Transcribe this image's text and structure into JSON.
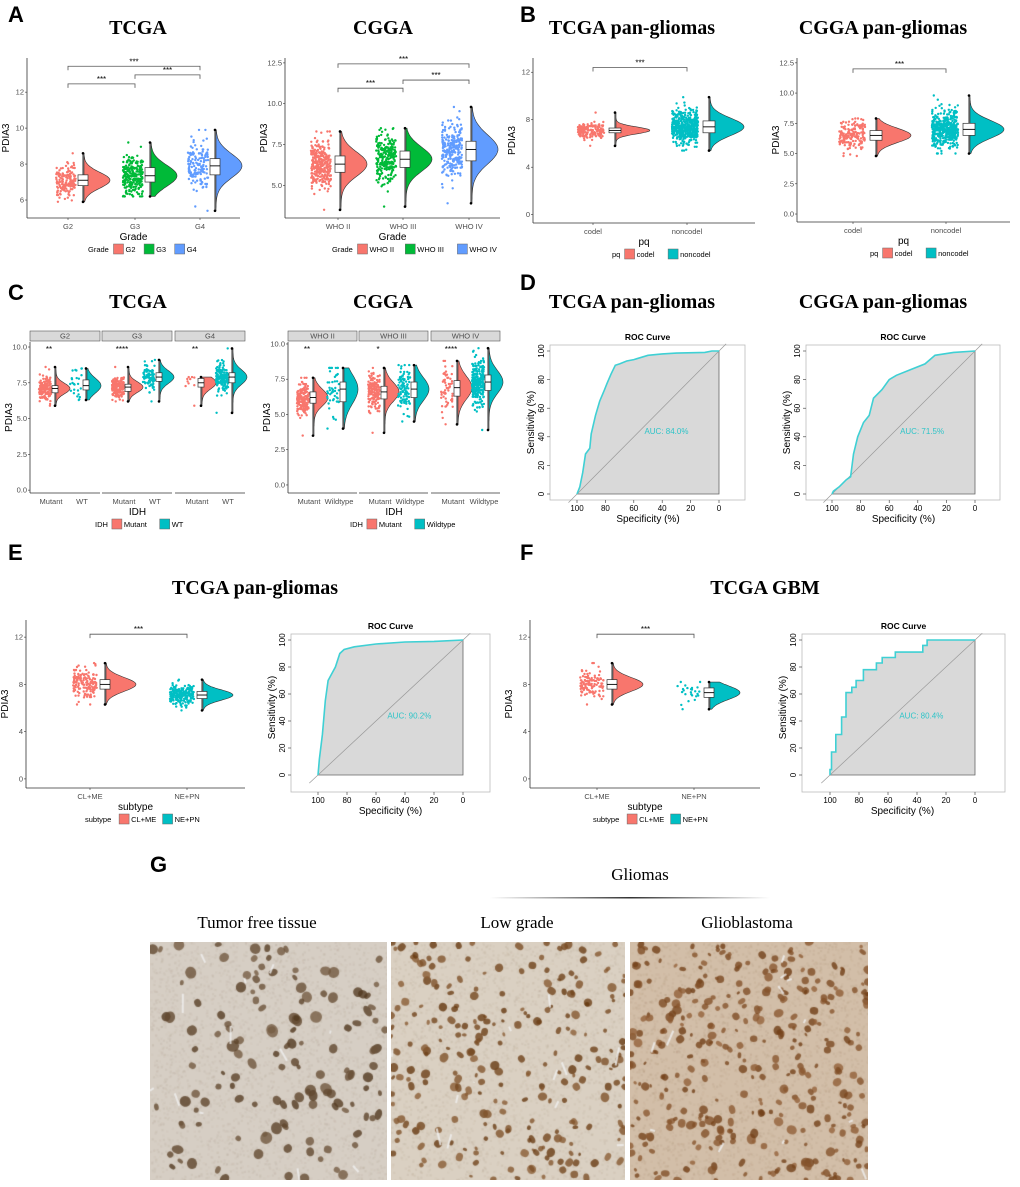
{
  "panels": {
    "A": {
      "letter": "A",
      "titles": [
        "TCGA",
        "CGGA"
      ]
    },
    "B": {
      "letter": "B",
      "titles": [
        "TCGA  pan-gliomas",
        "CGGA  pan-gliomas"
      ]
    },
    "C": {
      "letter": "C",
      "titles": [
        "TCGA",
        "CGGA"
      ]
    },
    "D": {
      "letter": "D",
      "titles": [
        "TCGA  pan-gliomas",
        "CGGA  pan-gliomas"
      ]
    },
    "E": {
      "letter": "E",
      "titles": [
        "TCGA  pan-gliomas"
      ]
    },
    "F": {
      "letter": "F",
      "titles": [
        "TCGA  GBM"
      ]
    },
    "G": {
      "letter": "G",
      "group_label": "Gliomas",
      "columns": [
        "Tumor free tissue",
        "Low grade",
        "Glioblastoma"
      ]
    }
  },
  "colors": {
    "red": "#F8766D",
    "green": "#00BA38",
    "blue": "#619CFF",
    "cyan": "#00BFC4",
    "roc": "#3FD0D4",
    "auc": "#2EC4C8"
  },
  "chart_data": [
    {
      "id": "A1",
      "type": "raincloud",
      "ylabel": "PDIA3",
      "xlabel": "Grade",
      "ylim": [
        5,
        13.9
      ],
      "yticks": [
        "6",
        "8",
        "10",
        "12"
      ],
      "legend_title": "Grade",
      "groups": [
        {
          "name": "G2",
          "color": "#F8766D",
          "median": 7.1,
          "q1": 6.8,
          "q3": 7.4,
          "min": 5.9,
          "max": 8.6,
          "n": 150
        },
        {
          "name": "G3",
          "color": "#00BA38",
          "median": 7.35,
          "q1": 7.0,
          "q3": 7.8,
          "min": 6.2,
          "max": 9.2,
          "n": 250
        },
        {
          "name": "G4",
          "color": "#619CFF",
          "median": 7.9,
          "q1": 7.4,
          "q3": 8.3,
          "min": 5.4,
          "max": 9.9,
          "n": 150
        }
      ],
      "brackets": [
        {
          "from": 0,
          "to": 1,
          "y": 12.46,
          "label": "***"
        },
        {
          "from": 1,
          "to": 2,
          "y": 12.96,
          "label": "***"
        },
        {
          "from": 0,
          "to": 2,
          "y": 13.44,
          "label": "***"
        }
      ]
    },
    {
      "id": "A2",
      "type": "raincloud",
      "ylabel": "PDIA3",
      "xlabel": "Grade",
      "ylim": [
        3,
        12.8
      ],
      "yticks": [
        "5.0",
        "7.5",
        "10.0",
        "12.5"
      ],
      "legend_title": "Grade",
      "groups": [
        {
          "name": "WHO II",
          "color": "#F8766D",
          "median": 6.3,
          "q1": 5.8,
          "q3": 6.8,
          "min": 3.5,
          "max": 8.3,
          "n": 300
        },
        {
          "name": "WHO III",
          "color": "#00BA38",
          "median": 6.6,
          "q1": 6.1,
          "q3": 7.1,
          "min": 3.7,
          "max": 8.5,
          "n": 250
        },
        {
          "name": "WHO IV",
          "color": "#619CFF",
          "median": 7.2,
          "q1": 6.5,
          "q3": 7.7,
          "min": 3.9,
          "max": 9.8,
          "n": 250
        }
      ],
      "brackets": [
        {
          "from": 0,
          "to": 1,
          "y": 10.95,
          "label": "***"
        },
        {
          "from": 1,
          "to": 2,
          "y": 11.45,
          "label": "***"
        },
        {
          "from": 0,
          "to": 2,
          "y": 12.44,
          "label": "***"
        }
      ]
    },
    {
      "id": "B1",
      "type": "raincloud",
      "ylabel": "PDIA3",
      "xlabel": "pq",
      "ylim": [
        -0.7,
        13.2
      ],
      "yticks": [
        "0",
        "4",
        "8",
        "12"
      ],
      "legend_title": "pq",
      "groups": [
        {
          "name": "codel",
          "color": "#F8766D",
          "median": 7.1,
          "q1": 6.9,
          "q3": 7.3,
          "min": 5.8,
          "max": 8.6,
          "n": 170
        },
        {
          "name": "noncodel",
          "color": "#00BFC4",
          "median": 7.4,
          "q1": 6.9,
          "q3": 7.9,
          "min": 5.4,
          "max": 9.9,
          "n": 450
        }
      ],
      "brackets": [
        {
          "from": 0,
          "to": 1,
          "y": 12.4,
          "label": "***"
        }
      ]
    },
    {
      "id": "B2",
      "type": "raincloud",
      "ylabel": "PDIA3",
      "xlabel": "pq",
      "ylim": [
        -0.66,
        12.9
      ],
      "yticks": [
        "0.0",
        "2.5",
        "5.0",
        "7.5",
        "10.0",
        "12.5"
      ],
      "legend_title": "pq",
      "groups": [
        {
          "name": "codel",
          "color": "#F8766D",
          "median": 6.5,
          "q1": 6.1,
          "q3": 6.9,
          "min": 4.8,
          "max": 7.9,
          "n": 170
        },
        {
          "name": "noncodel",
          "color": "#00BFC4",
          "median": 7.0,
          "q1": 6.5,
          "q3": 7.5,
          "min": 5.0,
          "max": 9.8,
          "n": 450
        }
      ],
      "brackets": [
        {
          "from": 0,
          "to": 1,
          "y": 12.0,
          "label": "***"
        }
      ]
    },
    {
      "id": "C1",
      "type": "raincloud-facet",
      "ylabel": "PDIA3",
      "xlabel": "IDH",
      "ylim": [
        -0.2,
        10.35
      ],
      "yticks": [
        "0.0",
        "2.5",
        "5.0",
        "7.5",
        "10.0"
      ],
      "legend_title": "IDH",
      "legend": [
        {
          "name": "Mutant",
          "color": "#F8766D"
        },
        {
          "name": "WT",
          "color": "#00BFC4"
        }
      ],
      "facets": [
        {
          "strip": "G2",
          "sig": "**",
          "groups": [
            {
              "name": "Mutant",
              "color": "#F8766D",
              "median": 7.1,
              "q1": 6.8,
              "q3": 7.3,
              "min": 5.9,
              "max": 8.6,
              "n": 150
            },
            {
              "name": "WT",
              "color": "#00BFC4",
              "median": 7.3,
              "q1": 7.0,
              "q3": 7.7,
              "min": 6.3,
              "max": 8.5,
              "n": 25
            }
          ]
        },
        {
          "strip": "G3",
          "sig": "****",
          "groups": [
            {
              "name": "Mutant",
              "color": "#F8766D",
              "median": 7.2,
              "q1": 6.9,
              "q3": 7.4,
              "min": 6.2,
              "max": 8.6,
              "n": 180
            },
            {
              "name": "WT",
              "color": "#00BFC4",
              "median": 7.9,
              "q1": 7.6,
              "q3": 8.2,
              "min": 6.2,
              "max": 9.1,
              "n": 90
            }
          ]
        },
        {
          "strip": "G4",
          "sig": "**",
          "groups": [
            {
              "name": "Mutant",
              "color": "#F8766D",
              "median": 7.5,
              "q1": 7.2,
              "q3": 7.8,
              "min": 5.9,
              "max": 7.9,
              "n": 10
            },
            {
              "name": "WT",
              "color": "#00BFC4",
              "median": 7.9,
              "q1": 7.5,
              "q3": 8.2,
              "min": 5.4,
              "max": 9.9,
              "n": 150
            }
          ]
        }
      ]
    },
    {
      "id": "C2",
      "type": "raincloud-facet",
      "ylabel": "PDIA3",
      "xlabel": "IDH",
      "ylim": [
        -0.57,
        10.14
      ],
      "yticks": [
        "0.0",
        "2.5",
        "5.0",
        "7.5",
        "10.0"
      ],
      "legend_title": "IDH",
      "legend": [
        {
          "name": "Mutant",
          "color": "#F8766D"
        },
        {
          "name": "Wildtype",
          "color": "#00BFC4"
        }
      ],
      "facets": [
        {
          "strip": "WHO II",
          "sig": "**",
          "groups": [
            {
              "name": "Mutant",
              "color": "#F8766D",
              "median": 6.2,
              "q1": 5.8,
              "q3": 6.6,
              "min": 3.5,
              "max": 7.6,
              "n": 180
            },
            {
              "name": "Wildtype",
              "color": "#00BFC4",
              "median": 6.8,
              "q1": 5.9,
              "q3": 7.3,
              "min": 4.0,
              "max": 8.3,
              "n": 50
            }
          ]
        },
        {
          "strip": "WHO III",
          "sig": "*",
          "groups": [
            {
              "name": "Mutant",
              "color": "#F8766D",
              "median": 6.6,
              "q1": 6.1,
              "q3": 7.0,
              "min": 3.7,
              "max": 8.3,
              "n": 150
            },
            {
              "name": "Wildtype",
              "color": "#00BFC4",
              "median": 6.8,
              "q1": 6.2,
              "q3": 7.3,
              "min": 4.5,
              "max": 8.5,
              "n": 100
            }
          ]
        },
        {
          "strip": "WHO IV",
          "sig": "****",
          "groups": [
            {
              "name": "Mutant",
              "color": "#F8766D",
              "median": 6.9,
              "q1": 6.3,
              "q3": 7.4,
              "min": 4.3,
              "max": 8.8,
              "n": 60
            },
            {
              "name": "Wildtype",
              "color": "#00BFC4",
              "median": 7.3,
              "q1": 6.7,
              "q3": 7.8,
              "min": 3.9,
              "max": 9.7,
              "n": 250
            }
          ]
        }
      ]
    },
    {
      "id": "D1",
      "type": "roc",
      "title": "ROC Curve",
      "xlabel": "Specificity (%)",
      "ylabel": "Sensitivity (%)",
      "xticks": [
        "100",
        "80",
        "60",
        "40",
        "20",
        "0"
      ],
      "yticks": [
        "0",
        "20",
        "40",
        "60",
        "80",
        "100"
      ],
      "auc_label": "AUC: 84.0%",
      "points": [
        [
          100,
          0
        ],
        [
          98,
          5
        ],
        [
          96,
          15
        ],
        [
          94,
          28
        ],
        [
          91,
          32
        ],
        [
          90,
          42
        ],
        [
          87,
          55
        ],
        [
          84,
          65
        ],
        [
          81,
          72
        ],
        [
          79,
          77
        ],
        [
          76,
          84
        ],
        [
          73,
          90
        ],
        [
          70,
          91
        ],
        [
          65,
          93
        ],
        [
          60,
          94
        ],
        [
          50,
          97
        ],
        [
          40,
          98
        ],
        [
          30,
          98.5
        ],
        [
          10,
          99
        ],
        [
          5,
          100
        ],
        [
          0,
          100
        ]
      ]
    },
    {
      "id": "D2",
      "type": "roc",
      "title": "ROC Curve",
      "xlabel": "Specificity (%)",
      "ylabel": "Sensitivity (%)",
      "xticks": [
        "100",
        "80",
        "60",
        "40",
        "20",
        "0"
      ],
      "yticks": [
        "0",
        "20",
        "40",
        "60",
        "80",
        "100"
      ],
      "auc_label": "AUC: 71.5%",
      "points": [
        [
          100,
          0
        ],
        [
          99,
          2
        ],
        [
          95,
          5
        ],
        [
          90,
          10
        ],
        [
          87,
          12
        ],
        [
          85,
          28
        ],
        [
          82,
          40
        ],
        [
          78,
          50
        ],
        [
          74,
          55
        ],
        [
          71,
          67
        ],
        [
          65,
          73
        ],
        [
          60,
          80
        ],
        [
          55,
          83
        ],
        [
          45,
          87
        ],
        [
          35,
          91
        ],
        [
          28,
          97
        ],
        [
          15,
          99
        ],
        [
          0,
          100
        ]
      ]
    },
    {
      "id": "E1",
      "type": "raincloud",
      "ylabel": "PDIA3",
      "xlabel": "subtype",
      "ylim": [
        -0.77,
        13.45
      ],
      "yticks": [
        "0",
        "4",
        "8",
        "12"
      ],
      "legend_title": "subtype",
      "groups": [
        {
          "name": "CL+ME",
          "color": "#F8766D",
          "median": 8.0,
          "q1": 7.6,
          "q3": 8.4,
          "min": 6.3,
          "max": 9.8,
          "n": 150
        },
        {
          "name": "NE+PN",
          "color": "#00BFC4",
          "median": 7.1,
          "q1": 6.8,
          "q3": 7.4,
          "min": 5.8,
          "max": 8.4,
          "n": 220
        }
      ],
      "brackets": [
        {
          "from": 0,
          "to": 1,
          "y": 12.25,
          "label": "***"
        }
      ]
    },
    {
      "id": "E2",
      "type": "roc",
      "title": "ROC Curve",
      "xlabel": "Specificity (%)",
      "ylabel": "Sensitivity (%)",
      "xticks": [
        "100",
        "80",
        "60",
        "40",
        "20",
        "0"
      ],
      "yticks": [
        "0",
        "20",
        "40",
        "60",
        "80",
        "100"
      ],
      "auc_label": "AUC: 90.2%",
      "points": [
        [
          100,
          0
        ],
        [
          99,
          12
        ],
        [
          97,
          30
        ],
        [
          95,
          55
        ],
        [
          93,
          70
        ],
        [
          91,
          74
        ],
        [
          88,
          80
        ],
        [
          85,
          90
        ],
        [
          82,
          93
        ],
        [
          75,
          95
        ],
        [
          60,
          97
        ],
        [
          40,
          98.5
        ],
        [
          20,
          99
        ],
        [
          0,
          100
        ]
      ]
    },
    {
      "id": "F1",
      "type": "raincloud",
      "ylabel": "PDIA3",
      "xlabel": "subtype",
      "ylim": [
        -0.77,
        13.45
      ],
      "yticks": [
        "0",
        "4",
        "8",
        "12"
      ],
      "legend_title": "subtype",
      "groups": [
        {
          "name": "CL+ME",
          "color": "#F8766D",
          "median": 8.0,
          "q1": 7.6,
          "q3": 8.4,
          "min": 6.3,
          "max": 9.8,
          "n": 120
        },
        {
          "name": "NE+PN",
          "color": "#00BFC4",
          "median": 7.3,
          "q1": 6.9,
          "q3": 7.7,
          "min": 5.9,
          "max": 8.2,
          "n": 25
        }
      ],
      "brackets": [
        {
          "from": 0,
          "to": 1,
          "y": 12.25,
          "label": "***"
        }
      ]
    },
    {
      "id": "F2",
      "type": "roc",
      "title": "ROC Curve",
      "xlabel": "Specificity (%)",
      "ylabel": "Sensitivity (%)",
      "xticks": [
        "100",
        "80",
        "60",
        "40",
        "20",
        "0"
      ],
      "yticks": [
        "0",
        "20",
        "40",
        "60",
        "80",
        "100"
      ],
      "auc_label": "AUC: 80.4%",
      "points": [
        [
          100,
          0
        ],
        [
          100,
          4
        ],
        [
          99,
          4
        ],
        [
          99,
          17
        ],
        [
          96,
          17
        ],
        [
          96,
          30
        ],
        [
          92,
          30
        ],
        [
          92,
          43
        ],
        [
          89,
          43
        ],
        [
          89,
          61
        ],
        [
          85,
          61
        ],
        [
          85,
          65
        ],
        [
          82,
          65
        ],
        [
          82,
          70
        ],
        [
          77,
          70
        ],
        [
          77,
          78
        ],
        [
          68,
          78
        ],
        [
          68,
          83
        ],
        [
          64,
          83
        ],
        [
          64,
          87
        ],
        [
          55,
          87
        ],
        [
          55,
          91
        ],
        [
          36,
          91
        ],
        [
          36,
          96
        ],
        [
          33,
          96
        ],
        [
          33,
          100
        ],
        [
          0,
          100
        ]
      ]
    }
  ]
}
